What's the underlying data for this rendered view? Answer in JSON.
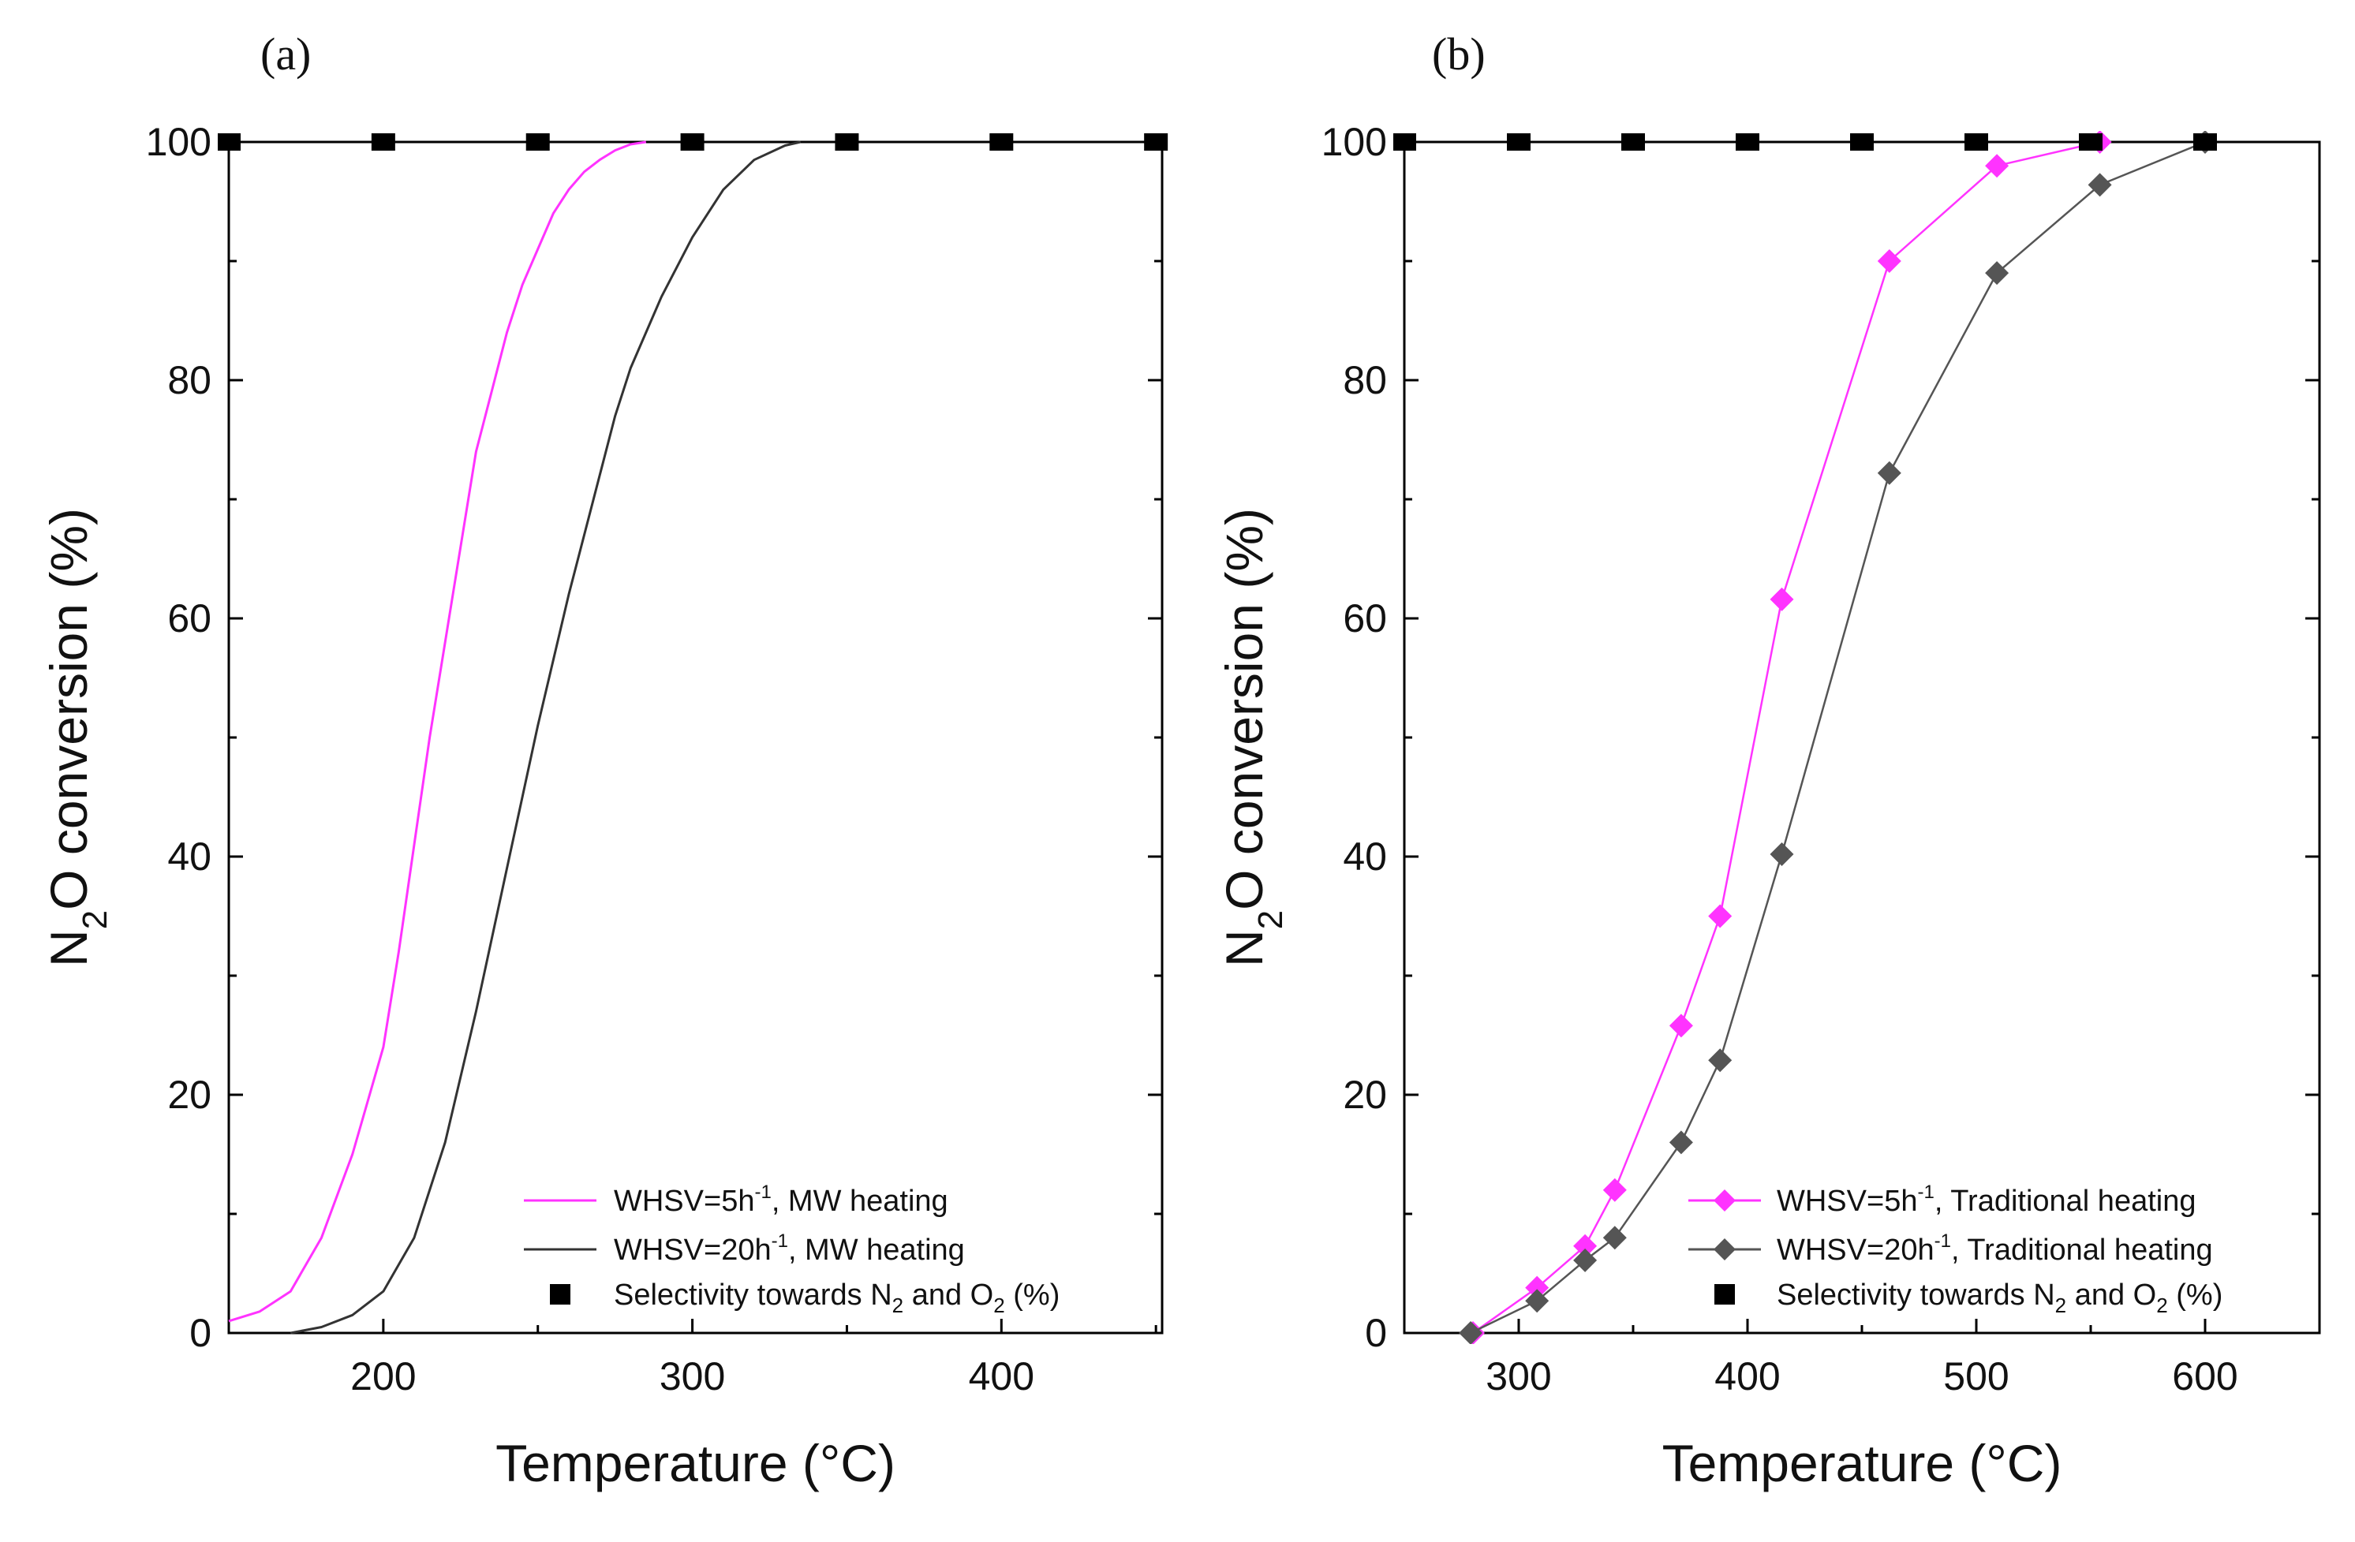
{
  "figure": {
    "colors": {
      "magenta": "#ff33ff",
      "dark": "#333333",
      "gray": "#555555",
      "black": "#000000"
    }
  },
  "chart_data": [
    {
      "panel": "(a)",
      "type": "line",
      "xlabel": "Temperature (°C)",
      "ylabel": {
        "main": "N",
        "sub": "2",
        "rest": "O conversion (%)"
      },
      "xlim": [
        150,
        452
      ],
      "ylim": [
        0,
        100
      ],
      "xticks": [
        200,
        300,
        400
      ],
      "yticks": [
        0,
        20,
        40,
        60,
        80,
        100
      ],
      "series": [
        {
          "name": "WHSV=5h-1, MW heating",
          "legend": {
            "base": "WHSV=5h",
            "sup": "-1",
            "rest": ", MW heating"
          },
          "color": "#ff33ff",
          "marker": "none",
          "x": [
            150,
            160,
            170,
            180,
            190,
            200,
            205,
            210,
            215,
            220,
            225,
            230,
            235,
            240,
            245,
            250,
            255,
            260,
            265,
            270,
            275,
            280,
            285
          ],
          "y": [
            1,
            1.8,
            3.5,
            8,
            15,
            24,
            32,
            41,
            50,
            58,
            66,
            74,
            79,
            84,
            88,
            91,
            94,
            96,
            97.5,
            98.5,
            99.3,
            99.8,
            100
          ]
        },
        {
          "name": "WHSV=20h-1, MW heating",
          "legend": {
            "base": "WHSV=20h",
            "sup": "-1",
            "rest": ", MW heating"
          },
          "color": "#333333",
          "marker": "none",
          "x": [
            170,
            180,
            190,
            200,
            210,
            220,
            230,
            240,
            250,
            260,
            270,
            275,
            280,
            290,
            300,
            310,
            320,
            330,
            335
          ],
          "y": [
            0,
            0.5,
            1.5,
            3.5,
            8,
            16,
            27,
            39,
            51,
            62,
            72,
            77,
            81,
            87,
            92,
            96,
            98.5,
            99.7,
            100
          ]
        },
        {
          "name": "Selectivity towards N2 and O2 (%)",
          "legend": {
            "base": "Selectivity towards N",
            "sub": "2",
            "mid": " and O",
            "sub2": "2",
            "rest": " (%)"
          },
          "color": "#000000",
          "marker": "square",
          "x": [
            150,
            200,
            250,
            300,
            350,
            400,
            450
          ],
          "y": [
            100,
            100,
            100,
            100,
            100,
            100,
            100
          ]
        }
      ]
    },
    {
      "panel": "(b)",
      "type": "line",
      "xlabel": "Temperature (°C)",
      "ylabel": {
        "main": "N",
        "sub": "2",
        "rest": "O conversion (%)"
      },
      "xlim": [
        250,
        650
      ],
      "ylim": [
        0,
        100
      ],
      "xticks": [
        300,
        400,
        500,
        600
      ],
      "yticks": [
        0,
        20,
        40,
        60,
        80,
        100
      ],
      "series": [
        {
          "name": "WHSV=5h-1, Traditional heating",
          "legend": {
            "base": "WHSV=5h",
            "sup": "-1",
            "rest": ", Traditional heating"
          },
          "color": "#ff33ff",
          "marker": "diamond",
          "x": [
            280,
            308,
            329,
            342,
            371,
            388,
            415,
            462,
            509,
            554
          ],
          "y": [
            0,
            3.8,
            7.3,
            12,
            25.8,
            35,
            61.6,
            90,
            98,
            100
          ]
        },
        {
          "name": "WHSV=20h-1, Traditional heating",
          "legend": {
            "base": "WHSV=20h",
            "sup": "-1",
            "rest": ", Traditional heating"
          },
          "color": "#555555",
          "marker": "diamond",
          "x": [
            279,
            308,
            329,
            342,
            371,
            388,
            415,
            462,
            509,
            554,
            600
          ],
          "y": [
            0,
            2.7,
            6.1,
            8,
            16,
            22.9,
            40.2,
            72.2,
            89,
            96.4,
            100
          ]
        },
        {
          "name": "Selectivity towards N2 and O2 (%)",
          "legend": {
            "base": "Selectivity towards N",
            "sub": "2",
            "mid": " and O",
            "sub2": "2",
            "rest": " (%)"
          },
          "color": "#000000",
          "marker": "square",
          "x": [
            250,
            300,
            350,
            400,
            450,
            500,
            550,
            600
          ],
          "y": [
            100,
            100,
            100,
            100,
            100,
            100,
            100,
            100
          ]
        }
      ]
    }
  ]
}
